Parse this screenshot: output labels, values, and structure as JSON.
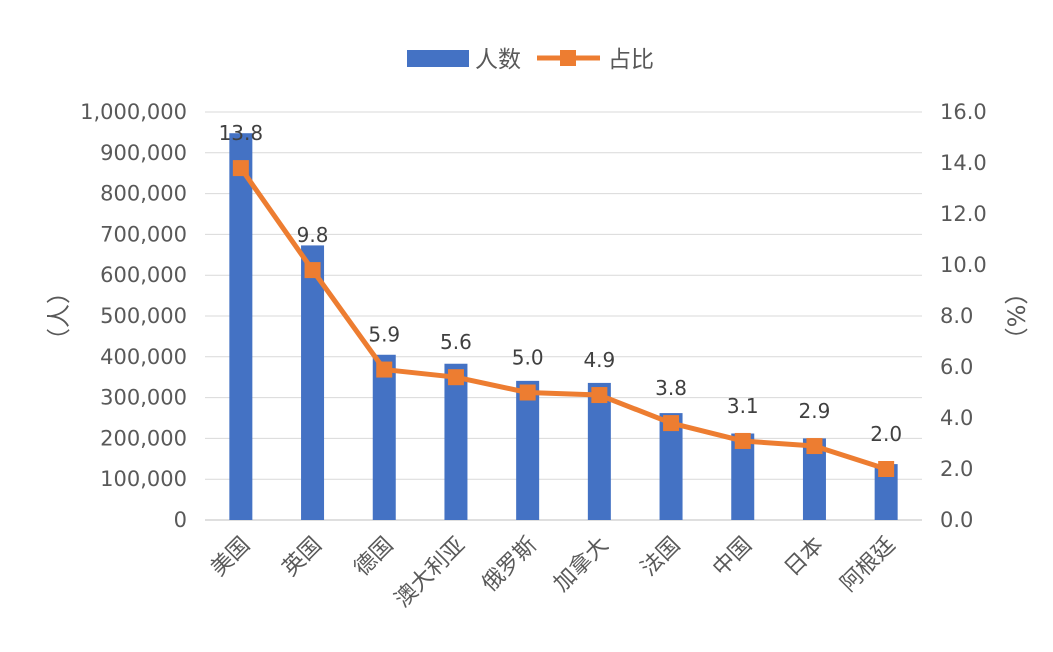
{
  "chart_data": {
    "type": "bar",
    "categories": [
      "美国",
      "英国",
      "德国",
      "澳大利亚",
      "俄罗斯",
      "加拿大",
      "法国",
      "中国",
      "日本",
      "阿根廷"
    ],
    "series": [
      {
        "name": "人数",
        "type": "bar",
        "axis": "left",
        "color": "#4472C4",
        "values": [
          948000,
          673000,
          405000,
          383000,
          341000,
          336000,
          262000,
          212000,
          200000,
          137000
        ]
      },
      {
        "name": "占比",
        "type": "line",
        "axis": "right",
        "color": "#ED7D31",
        "values": [
          13.8,
          9.8,
          5.9,
          5.6,
          5.0,
          4.9,
          3.8,
          3.1,
          2.9,
          2.0
        ],
        "labels": [
          "13.8",
          "9.8",
          "5.9",
          "5.6",
          "5.0",
          "4.9",
          "3.8",
          "3.1",
          "2.9",
          "2.0"
        ]
      }
    ],
    "ylabel": "（人）",
    "y2label": "（%）",
    "ylim": [
      0,
      1000000
    ],
    "y_ticks": [
      "0",
      "100,000",
      "200,000",
      "300,000",
      "400,000",
      "500,000",
      "600,000",
      "700,000",
      "800,000",
      "900,000",
      "1,000,000"
    ],
    "y2lim": [
      0,
      16
    ],
    "y2_ticks": [
      "0.0",
      "2.0",
      "4.0",
      "6.0",
      "8.0",
      "10.0",
      "12.0",
      "14.0",
      "16.0"
    ],
    "grid": true,
    "legend_position": "top-center"
  }
}
